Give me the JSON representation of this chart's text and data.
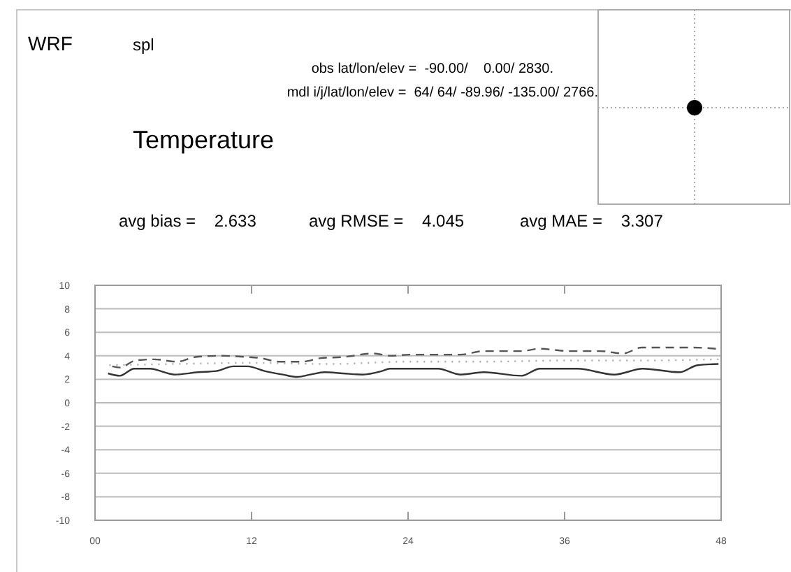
{
  "chart_data": {
    "type": "line",
    "title": "Temperature",
    "annotations": [
      "WRF",
      "spl",
      "obs lat/lon/elev =  -90.00/    0.00/ 2830.",
      "mdl i/j/lat/lon/elev =  64/ 64/ -89.96/ -135.00/ 2766.",
      "avg bias =    2.633",
      "avg RMSE =    4.045",
      "avg MAE =    3.307"
    ],
    "series": [
      {
        "color": "#333333",
        "line_style": "solid",
        "x": [
          1,
          1.9,
          3,
          4.2,
          6.1,
          7.9,
          9.3,
          10.6,
          11.7,
          13,
          14.4,
          15.5,
          16.5,
          17.6,
          19,
          20.5,
          22,
          22.6,
          24,
          26.3,
          28,
          29.8,
          32.7,
          34.1,
          37,
          39.8,
          42,
          44.8,
          46.2,
          47.8
        ],
        "values": [
          2.5,
          2.3,
          2.9,
          2.9,
          2.4,
          2.6,
          2.7,
          3.1,
          3.1,
          2.7,
          2.4,
          2.2,
          2.4,
          2.6,
          2.5,
          2.4,
          2.7,
          2.9,
          2.9,
          2.9,
          2.4,
          2.6,
          2.3,
          2.9,
          2.9,
          2.4,
          2.9,
          2.6,
          3.2,
          3.3
        ]
      },
      {
        "color": "#555555",
        "line_style": "dashed",
        "x": [
          1,
          1.9,
          3.1,
          4.5,
          6.3,
          7.7,
          9.5,
          11.6,
          12.7,
          14.1,
          15.9,
          17.3,
          19.1,
          21.3,
          22.7,
          24.1,
          28,
          29.8,
          32.7,
          34.1,
          36.3,
          38.7,
          40.5,
          41.9,
          44.1,
          45.9,
          47.6
        ],
        "values": [
          3.2,
          3.0,
          3.6,
          3.7,
          3.5,
          3.9,
          4.0,
          3.9,
          3.8,
          3.5,
          3.5,
          3.8,
          3.9,
          4.2,
          4.0,
          4.1,
          4.1,
          4.4,
          4.4,
          4.6,
          4.4,
          4.4,
          4.2,
          4.7,
          4.7,
          4.7,
          4.6
        ]
      },
      {
        "color": "#aaaaaa",
        "line_style": "dotted",
        "x": [
          1,
          6,
          12,
          18,
          24,
          30,
          36,
          42,
          47.8
        ],
        "values": [
          3.2,
          3.3,
          3.4,
          3.3,
          3.5,
          3.5,
          3.6,
          3.6,
          3.7
        ]
      }
    ],
    "xlim": [
      0,
      48
    ],
    "xticks": [
      {
        "value": 0,
        "label": "00"
      },
      12,
      24,
      36,
      48
    ],
    "ylim": [
      -10,
      10
    ],
    "yticks": [
      -10,
      -8,
      -6,
      -4,
      -2,
      0,
      2,
      4,
      6,
      8,
      10
    ],
    "grid": "y"
  }
}
